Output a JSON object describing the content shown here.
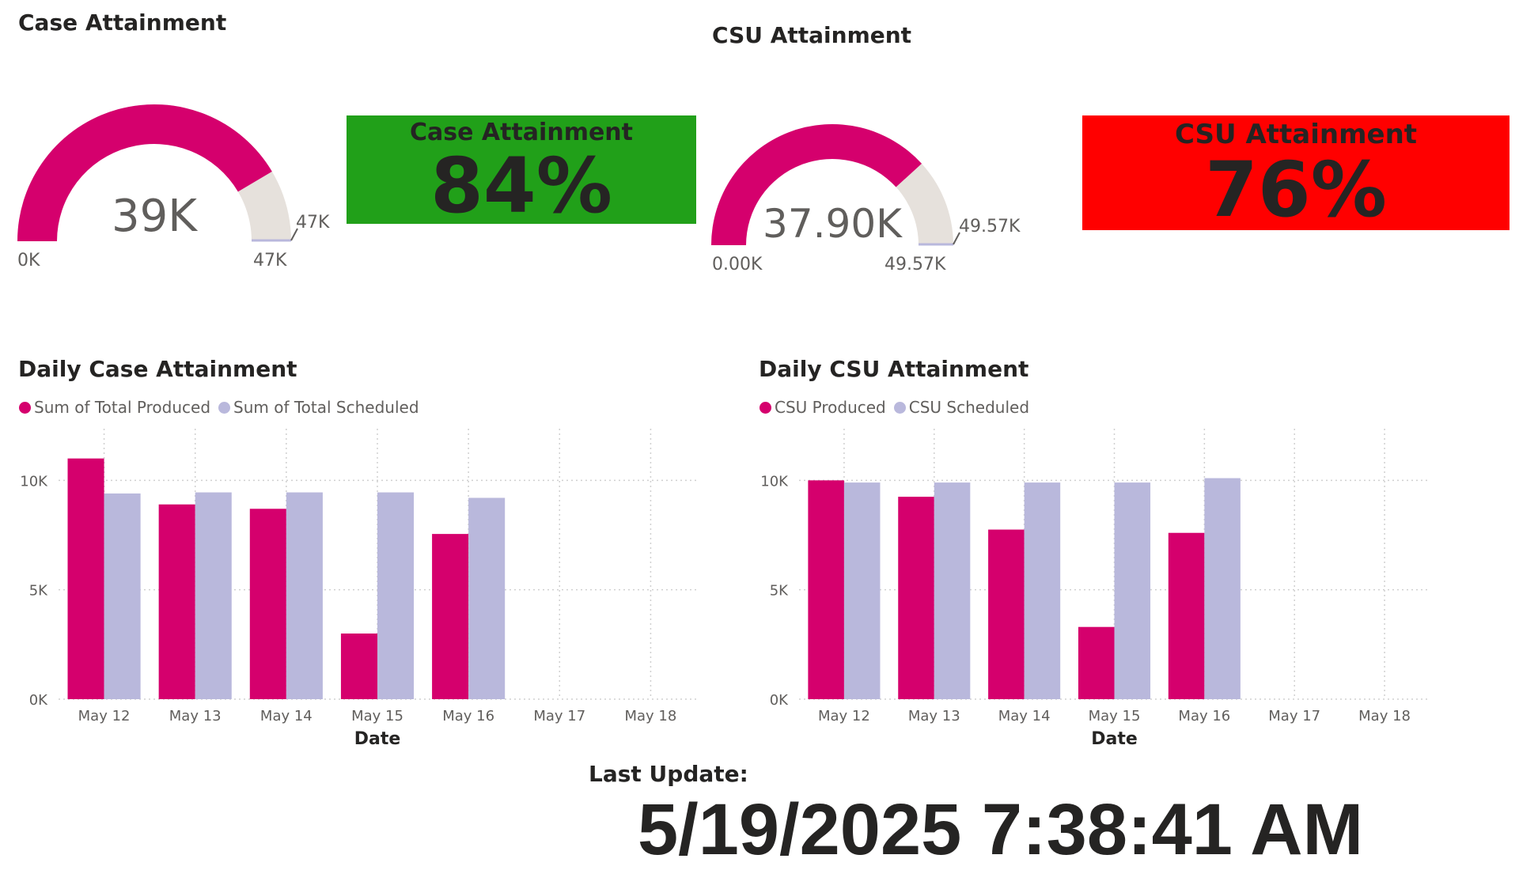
{
  "colors": {
    "produced": "#d5006d",
    "scheduled": "#b9b8dc",
    "gauge_track": "#e6e1dc",
    "green": "#21a019",
    "red": "#ff0000",
    "grid": "#d0d0d0"
  },
  "case_gauge": {
    "title": "Case Attainment",
    "value_label": "39K",
    "min_label": "0K",
    "max_label": "47K",
    "target_label": "47K",
    "value": 39,
    "max": 47
  },
  "case_card": {
    "title": "Case Attainment",
    "value": "84%"
  },
  "csu_gauge": {
    "title": "CSU Attainment",
    "value_label": "37.90K",
    "min_label": "0.00K",
    "max_label": "49.57K",
    "target_label": "49.57K",
    "value": 37.9,
    "max": 49.57
  },
  "csu_card": {
    "title": "CSU Attainment",
    "value": "76%"
  },
  "chart_data": [
    {
      "type": "bar",
      "title": "Daily Case Attainment",
      "xlabel": "Date",
      "ylabel": "",
      "categories": [
        "May 12",
        "May 13",
        "May 14",
        "May 15",
        "May 16",
        "May 17",
        "May 18"
      ],
      "series": [
        {
          "name": "Sum of Total Produced",
          "values": [
            11000,
            8900,
            8700,
            3000,
            7550,
            null,
            null
          ]
        },
        {
          "name": "Sum of Total Scheduled",
          "values": [
            9400,
            9450,
            9450,
            9450,
            9200,
            null,
            null
          ]
        }
      ],
      "yticks": [
        0,
        5000,
        10000
      ],
      "ytick_labels": [
        "0K",
        "5K",
        "10K"
      ],
      "ylim": [
        0,
        12000
      ],
      "grid": true,
      "legend_position": "top-left"
    },
    {
      "type": "bar",
      "title": "Daily CSU Attainment",
      "xlabel": "Date",
      "ylabel": "",
      "categories": [
        "May 12",
        "May 13",
        "May 14",
        "May 15",
        "May 16",
        "May 17",
        "May 18"
      ],
      "series": [
        {
          "name": "CSU Produced",
          "values": [
            10000,
            9250,
            7750,
            3300,
            7600,
            null,
            null
          ]
        },
        {
          "name": "CSU Scheduled",
          "values": [
            9900,
            9900,
            9900,
            9900,
            10100,
            null,
            null
          ]
        }
      ],
      "yticks": [
        0,
        5000,
        10000
      ],
      "ytick_labels": [
        "0K",
        "5K",
        "10K"
      ],
      "ylim": [
        0,
        12000
      ],
      "grid": true,
      "legend_position": "top-left"
    }
  ],
  "last_update": {
    "label": "Last Update:",
    "value": "5/19/2025 7:38:41 AM"
  }
}
